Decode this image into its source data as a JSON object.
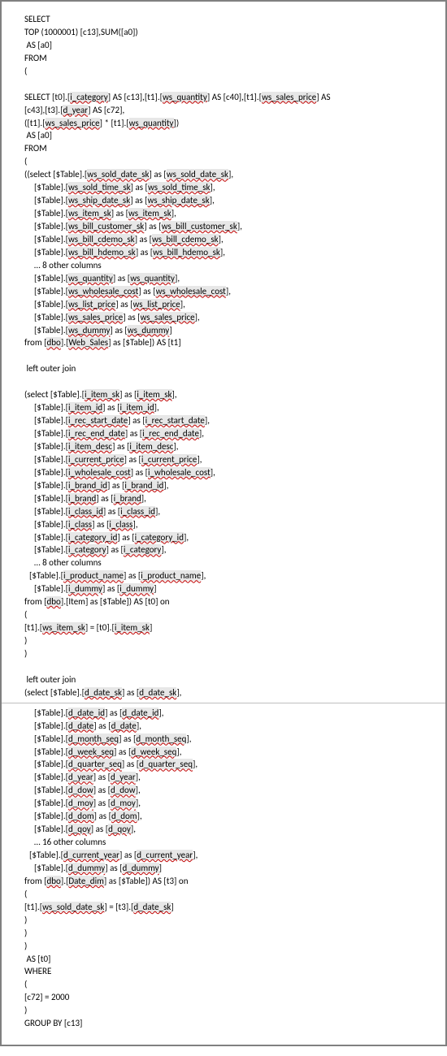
{
  "lines": {
    "l1": "SELECT",
    "l2": "TOP (1000001) [c13],SUM([a0])",
    "l3": " AS [a0]",
    "l4": "FROM",
    "l5": "(",
    "blank1": " ",
    "l6a": "SELECT [t0].[",
    "l6b": "] AS [c13],[t1].[",
    "l6c": "] AS [c40],[t1].[",
    "l6d": "] AS",
    "l7a": "[c43],[t3].[",
    "l7b": "] AS [c72],",
    "l8a": "([t1].[",
    "l8b": "] * [t1].[",
    "l8c": "])",
    "l9": " AS [a0]",
    "l10": "FROM",
    "l11": "(",
    "l12a": "((select [$Table].[",
    "l12b": "] as [",
    "l12c": "],",
    "l13a": "[$Table].[",
    "l13b": "] as [",
    "l13c": "],",
    "l14a": "[$Table].[",
    "l14b": "] as [",
    "l14c": "],",
    "l15a": "[$Table].[",
    "l15b": "] as [",
    "l15c": "],",
    "l16a": "[$Table].[",
    "l16b": "] as [",
    "l16c": "],",
    "l17a": "[$Table].[",
    "l17b": "] as [",
    "l17c": "],",
    "l18a": "[$Table].[",
    "l18b": "] as [",
    "l18c": "],",
    "l19": "… 8 other columns",
    "l20a": "[$Table].[",
    "l20b": "] as [",
    "l20c": "],",
    "l21a": "[$Table].[",
    "l21b": "] as [",
    "l21c": "],",
    "l22a": "[$Table].[",
    "l22b": "] as [",
    "l22c": "],",
    "l23a": "[$Table].[",
    "l23b": "] as [",
    "l23c": "],",
    "l24a": "[$Table].[",
    "l24b": "] as [",
    "l24c": "]",
    "l25a": "from [",
    "l25b": "].[",
    "l25c": "] as [$Table]) AS [t1]",
    "blank2": " ",
    "l26": " left outer join",
    "blank3": " ",
    "l27a": "(select [$Table].[",
    "l27b": "] as [",
    "l27c": "],",
    "l28a": "[$Table].[",
    "l28b": "] as [",
    "l28c": "],",
    "l29a": "[$Table].[",
    "l29b": "] as [",
    "l29c": "],",
    "l30a": "[$Table].[",
    "l30b": "] as [",
    "l30c": "],",
    "l31a": "[$Table].[",
    "l31b": "] as [",
    "l31c": "],",
    "l32a": "[$Table].[",
    "l32b": "] as [",
    "l32c": "],",
    "l33a": "[$Table].[",
    "l33b": "] as [",
    "l33c": "],",
    "l34a": "[$Table].[",
    "l34b": "] as [",
    "l34c": "],",
    "l35a": "[$Table].[",
    "l35b": "] as [",
    "l35c": "],",
    "l36a": "[$Table].[",
    "l36b": "] as [",
    "l36c": "],",
    "l37a": "[$Table].[",
    "l37b": "] as [",
    "l37c": "],",
    "l38a": "[$Table].[",
    "l38b": "] as [",
    "l38c": "],",
    "l39a": "[$Table].[",
    "l39b": "] as [",
    "l39c": "],",
    "l40": "… 8 other columns",
    "l41a": "[$Table].[",
    "l41b": "] as [",
    "l41c": "],",
    "l42a": "[$Table].[",
    "l42b": "] as [",
    "l42c": "]",
    "l43a": "from [",
    "l43b": "].[Item] as [$Table]) AS [t0] on",
    "l44": "(",
    "l45a": "[t1].[",
    "l45b": "] = [t0].[",
    "l45c": "]",
    "l46": ")",
    "l47": ")",
    "blank4": " ",
    "l48": " left outer join",
    "l49a": "(select [$Table].[",
    "l49b": "] as [",
    "l49c": "],",
    "l50a": "[$Table].[",
    "l50b": "] as [",
    "l50c": "],",
    "l51a": "[$Table].[",
    "l51b": "] as [",
    "l51c": "],",
    "l52a": "[$Table].[",
    "l52b": "] as [",
    "l52c": "],",
    "l53a": "[$Table].[",
    "l53b": "] as [",
    "l53c": "],",
    "l54a": "[$Table].[",
    "l54b": "] as [",
    "l54c": "],",
    "l55a": "[$Table].[",
    "l55b": "] as [",
    "l55c": "],",
    "l56a": "[$Table].[",
    "l56b": "] as [",
    "l56c": "],",
    "l57a": "[$Table].[",
    "l57b": "] as [",
    "l57c": "],",
    "l58a": "[$Table].[",
    "l58b": "] as [",
    "l58c": "],",
    "l59a": "[$Table].[",
    "l59b": "] as [",
    "l59c": "],",
    "l60": "… 16 other columns",
    "l61a": "[$Table].[",
    "l61b": "] as [",
    "l61c": "],",
    "l62a": "[$Table].[",
    "l62b": "] as [",
    "l62c": "]",
    "l63a": "from [",
    "l63b": "].[",
    "l63c": "] as [$Table]) AS [t3] on",
    "l64": "(",
    "l65a": "[t1].[",
    "l65b": "] = [t3].[",
    "l65c": "]",
    "l66": ")",
    "l67": ")",
    "l68": ")",
    "l69": " AS [t0]",
    "l70": "WHERE",
    "l71": "(",
    "l72": "[c72] = 2000",
    "l73": ")",
    "l74": "GROUP BY [c13]"
  },
  "sq": {
    "i_category": "i_category",
    "ws_quantity": "ws_quantity",
    "ws_sales_price": "ws_sales_price",
    "d_year": "d_year",
    "ws_sold_date_sk": "ws_sold_date_sk",
    "ws_sold_time_sk": "ws_sold_time_sk",
    "ws_ship_date_sk": "ws_ship_date_sk",
    "ws_item_sk": "ws_item_sk",
    "ws_bill_customer_sk": "ws_bill_customer_sk",
    "ws_bill_cdemo_sk": "ws_bill_cdemo_sk",
    "ws_bill_hdemo_sk": "ws_bill_hdemo_sk",
    "ws_wholesale_cost": "ws_wholesale_cost",
    "ws_list_price": "ws_list_price",
    "ws_dummy": "ws_dummy",
    "dbo": "dbo",
    "web_sales": "Web_Sales",
    "i_item_sk": "i_item_sk",
    "i_item_id": "i_item_id",
    "i_rec_start_date": "i_rec_start_date",
    "i_rec_end_date": "i_rec_end_date",
    "i_item_desc": "i_item_desc",
    "i_current_price": "i_current_price",
    "i_wholesale_cost": "i_wholesale_cost",
    "i_brand_id": "i_brand_id",
    "i_brand": "i_brand",
    "i_class_id": "i_class_id",
    "i_class": "i_class",
    "i_category_id": "i_category_id",
    "i_product_name": "i_product_name",
    "i_dummy": "i_dummy",
    "d_date_sk": "d_date_sk",
    "d_date_id": "d_date_id",
    "d_date": "d_date",
    "d_month_seq": "d_month_seq",
    "d_week_seq": "d_week_seq",
    "d_quarter_seq": "d_quarter_seq",
    "d_dow": "d_dow",
    "d_moy": "d_moy",
    "d_dom": "d_dom",
    "d_qoy": "d_qoy",
    "d_current_year": "d_current_year",
    "d_dummy": "d_dummy",
    "date_dim": "Date_dim"
  }
}
